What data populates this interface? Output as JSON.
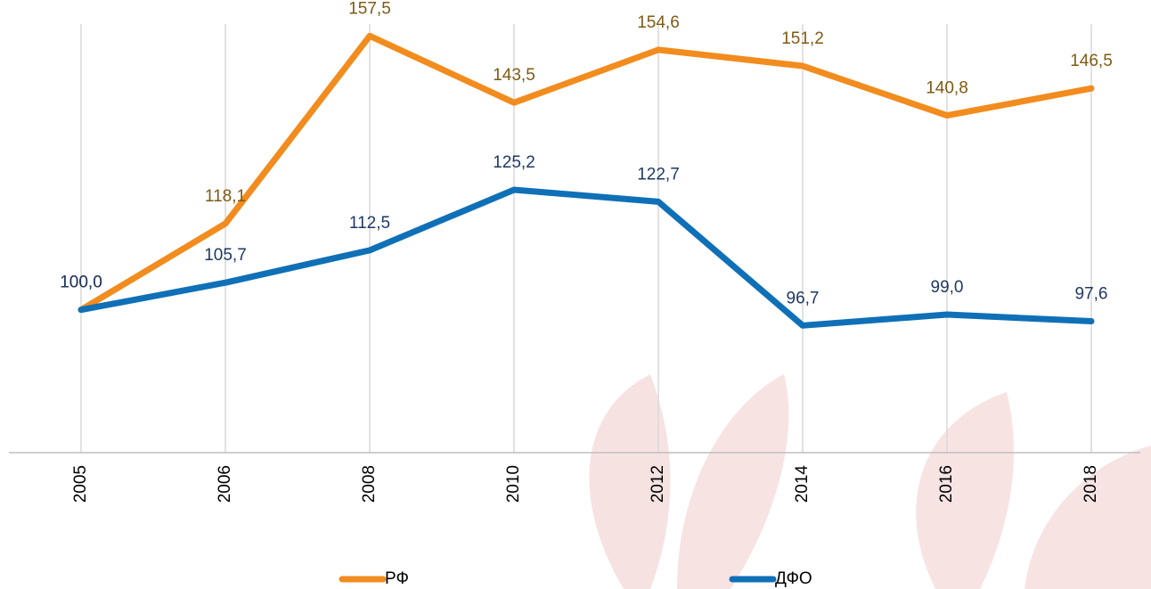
{
  "chart_data": {
    "type": "line",
    "categories": [
      "2005",
      "2006",
      "2008",
      "2010",
      "2012",
      "2014",
      "2016",
      "2018"
    ],
    "series": [
      {
        "name": "РФ",
        "color": "#f28c1e",
        "label_color": "#7f5a13",
        "values": [
          100.0,
          118.1,
          157.5,
          143.5,
          154.6,
          151.2,
          140.8,
          146.5
        ],
        "value_labels": [
          "100,0",
          "118,1",
          "157,5",
          "143,5",
          "154,6",
          "151,2",
          "140,8",
          "146,5"
        ]
      },
      {
        "name": "ДФО",
        "color": "#0f70b7",
        "label_color": "#1f3864",
        "values": [
          100.0,
          105.7,
          112.5,
          125.2,
          122.7,
          96.7,
          99.0,
          97.6
        ],
        "value_labels": [
          "100,0",
          "105,7",
          "112,5",
          "125,2",
          "122,7",
          "96,7",
          "99,0",
          "97,6"
        ]
      }
    ],
    "ylim": [
      70,
      160
    ],
    "grid": true,
    "legend": "bottom"
  }
}
